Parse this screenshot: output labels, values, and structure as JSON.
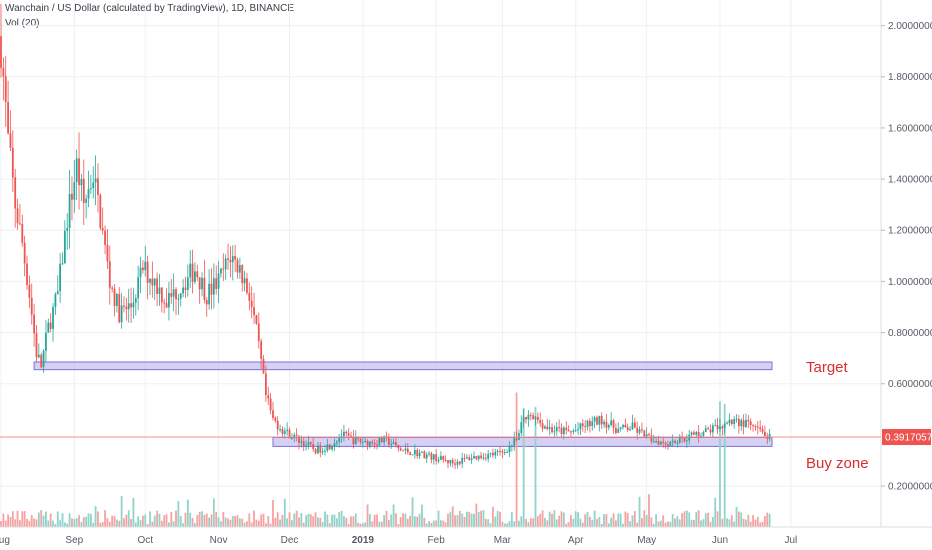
{
  "header": {
    "symbol_title": "Wanchain / US Dollar (calculated by TradingView), 1D, BINANCE",
    "volume_indicator": "Vol (20)"
  },
  "colors": {
    "up": "#26a69a",
    "down": "#ef5350",
    "volume_up": "#8fd3c9",
    "volume_down": "#f5a3a1",
    "zone_fill": "#c8c2ee",
    "zone_stroke": "#7e6fd6",
    "annotation": "#d32f2f",
    "price_line": "#f48c8c",
    "price_label_bg": "#ef5350",
    "grid": "#eef0f3"
  },
  "chart_data": {
    "type": "candlestick",
    "title": "Wanchain / US Dollar (calculated by TradingView), 1D, BINANCE",
    "xlabel": "",
    "ylabel": "",
    "ylim": [
      0.04,
      2.1
    ],
    "y_ticks": [
      "2.00000000",
      "1.80000000",
      "1.60000000",
      "1.40000000",
      "1.20000000",
      "1.00000000",
      "0.80000000",
      "0.60000000",
      "0.20000000"
    ],
    "y_tick_values": [
      2.0,
      1.8,
      1.6,
      1.4,
      1.2,
      1.0,
      0.8,
      0.6,
      0.2
    ],
    "x_ticks": [
      "Aug",
      "Sep",
      "Oct",
      "Nov",
      "Dec",
      "2019",
      "Feb",
      "Mar",
      "Apr",
      "May",
      "Jun",
      "Jul"
    ],
    "x_tick_dates": [
      "2018-08-01",
      "2018-09-01",
      "2018-10-01",
      "2018-11-01",
      "2018-12-01",
      "2019-01-01",
      "2019-02-01",
      "2019-03-01",
      "2019-04-01",
      "2019-05-01",
      "2019-06-01",
      "2019-07-01"
    ],
    "date_range": [
      "2018-08-01",
      "2019-06-22"
    ],
    "grid": true,
    "last_price": 0.3917057,
    "last_price_label": "0.39170570",
    "price_path": [
      [
        "2018-08-01",
        1.92
      ],
      [
        "2018-08-04",
        1.55
      ],
      [
        "2018-08-07",
        1.3
      ],
      [
        "2018-08-10",
        1.15
      ],
      [
        "2018-08-13",
        0.95
      ],
      [
        "2018-08-16",
        0.72
      ],
      [
        "2018-08-18",
        0.67
      ],
      [
        "2018-08-21",
        0.82
      ],
      [
        "2018-08-25",
        0.95
      ],
      [
        "2018-08-29",
        1.25
      ],
      [
        "2018-09-02",
        1.45
      ],
      [
        "2018-09-05",
        1.3
      ],
      [
        "2018-09-09",
        1.42
      ],
      [
        "2018-09-12",
        1.25
      ],
      [
        "2018-09-16",
        1.0
      ],
      [
        "2018-09-20",
        0.88
      ],
      [
        "2018-09-25",
        0.9
      ],
      [
        "2018-09-30",
        1.05
      ],
      [
        "2018-10-05",
        1.0
      ],
      [
        "2018-10-10",
        0.92
      ],
      [
        "2018-10-16",
        0.98
      ],
      [
        "2018-10-22",
        1.05
      ],
      [
        "2018-10-27",
        0.95
      ],
      [
        "2018-11-01",
        1.0
      ],
      [
        "2018-11-06",
        1.1
      ],
      [
        "2018-11-10",
        1.05
      ],
      [
        "2018-11-14",
        0.95
      ],
      [
        "2018-11-17",
        0.8
      ],
      [
        "2018-11-19",
        0.68
      ],
      [
        "2018-11-21",
        0.55
      ],
      [
        "2018-11-24",
        0.46
      ],
      [
        "2018-11-28",
        0.42
      ],
      [
        "2018-12-05",
        0.38
      ],
      [
        "2018-12-12",
        0.34
      ],
      [
        "2018-12-18",
        0.36
      ],
      [
        "2018-12-23",
        0.4
      ],
      [
        "2018-12-28",
        0.38
      ],
      [
        "2019-01-05",
        0.37
      ],
      [
        "2019-01-11",
        0.38
      ],
      [
        "2019-01-17",
        0.34
      ],
      [
        "2019-01-24",
        0.33
      ],
      [
        "2019-02-01",
        0.31
      ],
      [
        "2019-02-08",
        0.29
      ],
      [
        "2019-02-15",
        0.31
      ],
      [
        "2019-02-22",
        0.32
      ],
      [
        "2019-03-01",
        0.33
      ],
      [
        "2019-03-07",
        0.38
      ],
      [
        "2019-03-10",
        0.47
      ],
      [
        "2019-03-15",
        0.46
      ],
      [
        "2019-03-22",
        0.42
      ],
      [
        "2019-03-30",
        0.41
      ],
      [
        "2019-04-06",
        0.44
      ],
      [
        "2019-04-12",
        0.46
      ],
      [
        "2019-04-19",
        0.42
      ],
      [
        "2019-04-25",
        0.43
      ],
      [
        "2019-05-01",
        0.39
      ],
      [
        "2019-05-09",
        0.37
      ],
      [
        "2019-05-14",
        0.38
      ],
      [
        "2019-05-21",
        0.4
      ],
      [
        "2019-05-28",
        0.42
      ],
      [
        "2019-06-01",
        0.44
      ],
      [
        "2019-06-07",
        0.45
      ],
      [
        "2019-06-13",
        0.44
      ],
      [
        "2019-06-18",
        0.41
      ],
      [
        "2019-06-22",
        0.39
      ]
    ],
    "volume_spikes": [
      "2019-03-07",
      "2019-03-10",
      "2019-03-15",
      "2019-06-01",
      "2019-06-03"
    ],
    "zones": [
      {
        "name": "Target",
        "low": 0.655,
        "high": 0.685,
        "start": "2018-08-15",
        "end": "2019-06-23"
      },
      {
        "name": "Buy zone",
        "low": 0.355,
        "high": 0.39,
        "start": "2018-11-24",
        "end": "2019-06-23"
      }
    ],
    "annotations": [
      {
        "text": "Target",
        "date": "2019-06-25",
        "y": 0.645
      },
      {
        "text": "Buy zone",
        "date": "2019-06-25",
        "y": 0.27
      }
    ]
  }
}
